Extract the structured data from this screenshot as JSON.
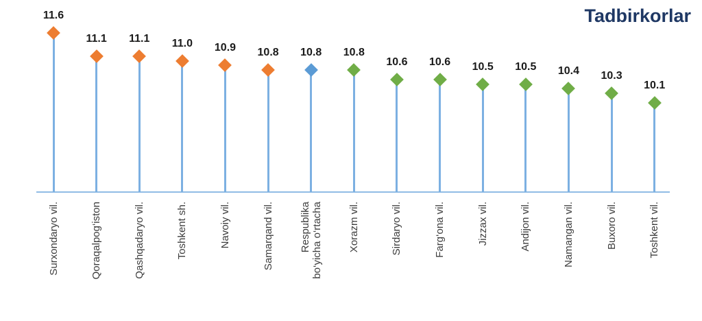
{
  "title": "Tadbirkorlar",
  "title_color": "#1F3864",
  "chart_data": {
    "type": "lollipop",
    "title": "Tadbirkorlar",
    "xlabel": "",
    "ylabel": "",
    "grid": "off",
    "legend": "none",
    "ylim": [
      8.2,
      12.0
    ],
    "categories": [
      "Surxondaryo vil.",
      "Qoraqalpog‘iston",
      "Qashqadaryo vil.",
      "Toshkent sh.",
      "Navoiy vil.",
      "Samarqand vil.",
      "Respublika\nbo‘yicha o‘rtacha",
      "Xorazm vil.",
      "Sirdaryo vil.",
      "Farg‘ona vil.",
      "Jizzax vil.",
      "Andijon vil.",
      "Namangan vil.",
      "Buxoro vil.",
      "Toshkent vil."
    ],
    "values": [
      11.6,
      11.1,
      11.1,
      11.0,
      10.9,
      10.8,
      10.8,
      10.8,
      10.6,
      10.6,
      10.5,
      10.5,
      10.4,
      10.3,
      10.1
    ],
    "value_labels": [
      "11.6",
      "11.1",
      "11.1",
      "11.0",
      "10.9",
      "10.8",
      "10.8",
      "10.8",
      "10.6",
      "10.6",
      "10.5",
      "10.5",
      "10.4",
      "10.3",
      "10.1"
    ],
    "point_colors": [
      "#ED7D31",
      "#ED7D31",
      "#ED7D31",
      "#ED7D31",
      "#ED7D31",
      "#ED7D31",
      "#5B9BD5",
      "#70AD47",
      "#70AD47",
      "#70AD47",
      "#70AD47",
      "#70AD47",
      "#70AD47",
      "#70AD47",
      "#70AD47"
    ],
    "stem_color": "#7CB0E2",
    "axis_line_color": "#90BCE5",
    "value_label_color": "#1a1a1a",
    "category_label_color": "#3d3d3d"
  }
}
